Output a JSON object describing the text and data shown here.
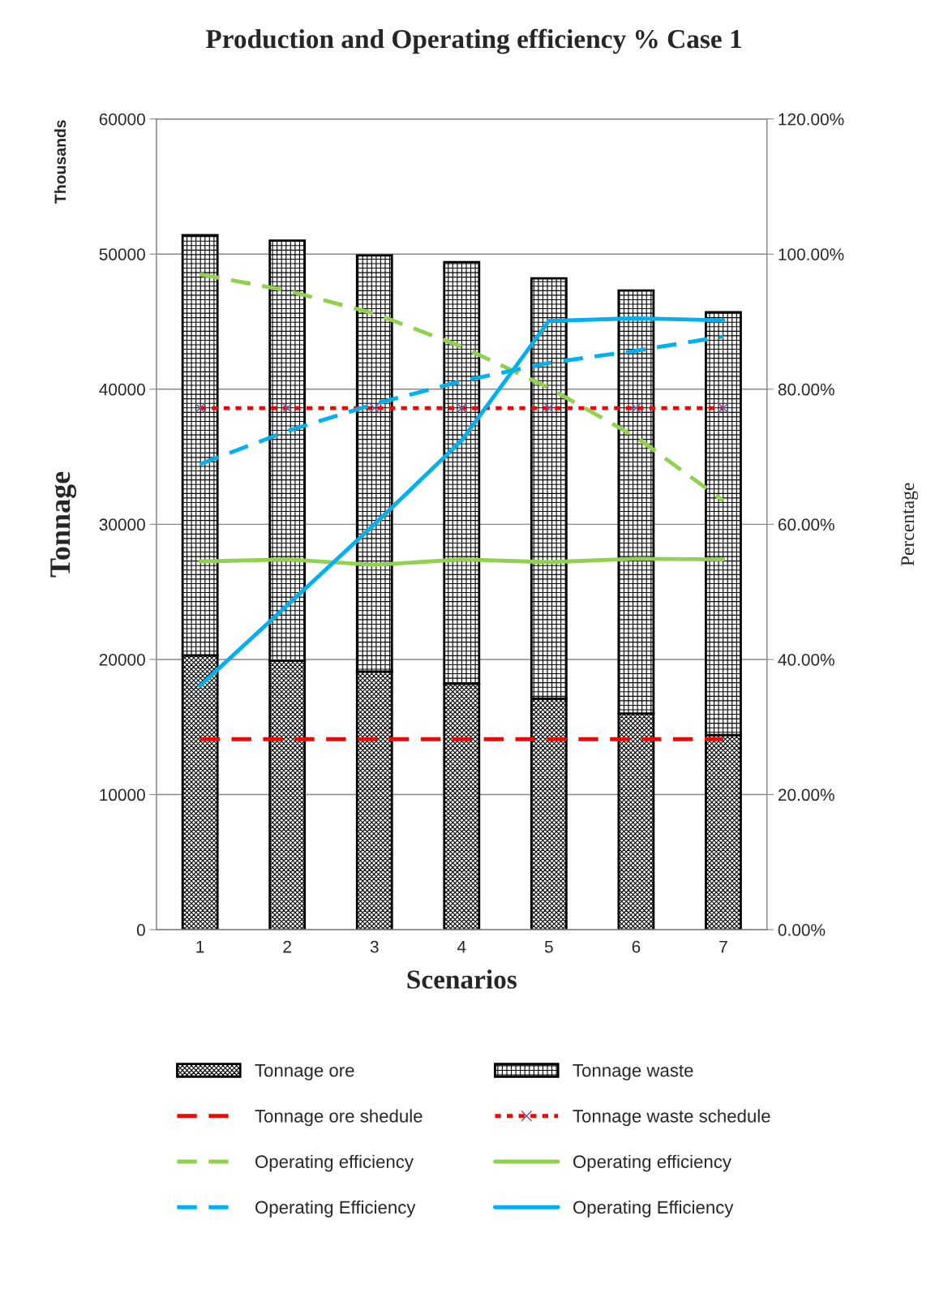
{
  "chart_data": {
    "type": "bar",
    "title": "Production and Operating efficiency % Case 1",
    "xlabel": "Scenarios",
    "ylabel": "Tonnage",
    "y2label": "Percentage",
    "annotations": [
      "Thousands"
    ],
    "categories": [
      "1",
      "2",
      "3",
      "4",
      "5",
      "6",
      "7"
    ],
    "stacked": true,
    "ylim": [
      0,
      60000
    ],
    "yticks": [
      0,
      10000,
      20000,
      30000,
      40000,
      50000,
      60000
    ],
    "y2lim": [
      0,
      120
    ],
    "y2ticks": [
      {
        "value": 0,
        "label": "0.00%"
      },
      {
        "value": 20,
        "label": "20.00%"
      },
      {
        "value": 40,
        "label": "40.00%"
      },
      {
        "value": 60,
        "label": "60.00%"
      },
      {
        "value": 80,
        "label": "80.00%"
      },
      {
        "value": 100,
        "label": "100.00%"
      },
      {
        "value": 120,
        "label": "120.00%"
      }
    ],
    "grid": "y",
    "legend": "bottom",
    "series": [
      {
        "name": "Tonnage ore",
        "color": "#000000",
        "values": [
          20300,
          19900,
          19100,
          18200,
          17100,
          16000,
          14400
        ]
      },
      {
        "name": "Tonnage waste",
        "color": "#000000",
        "values": [
          31100,
          31100,
          30800,
          31200,
          31100,
          31300,
          31300
        ]
      },
      {
        "name": "Tonnage ore shedule",
        "type": "line",
        "color": "#ff0000",
        "line_style": "dashed",
        "values": [
          14100,
          14100,
          14100,
          14100,
          14100,
          14100,
          14100
        ]
      },
      {
        "name": "Tonnage waste schedule",
        "type": "line",
        "color": "#ff0000",
        "line_style": "dotted",
        "marker": "cross",
        "values": [
          38600,
          38600,
          38600,
          38600,
          38600,
          38600,
          38600
        ]
      },
      {
        "name": "Operating efficiency",
        "type": "line",
        "axis": "y2",
        "color": "#92d050",
        "line_style": "dashed",
        "values": [
          97.0,
          94.6,
          91.2,
          86.3,
          80.2,
          72.9,
          63.5
        ]
      },
      {
        "name": "Operating efficiency",
        "type": "line",
        "axis": "y2",
        "color": "#92d050",
        "line_style": "solid",
        "values": [
          54.5,
          54.8,
          54.0,
          54.8,
          54.4,
          54.9,
          54.8
        ]
      },
      {
        "name": "Operating Efficiency",
        "type": "line",
        "axis": "y2",
        "color": "#00b0f0",
        "line_style": "dashed",
        "values": [
          68.9,
          73.8,
          77.8,
          81.2,
          83.9,
          85.7,
          87.8
        ]
      },
      {
        "name": "Operating Efficiency",
        "type": "line",
        "axis": "y2",
        "color": "#00b0f0",
        "line_style": "solid",
        "values": [
          36.1,
          48.0,
          60.0,
          72.4,
          90.1,
          90.5,
          90.2
        ]
      }
    ]
  }
}
